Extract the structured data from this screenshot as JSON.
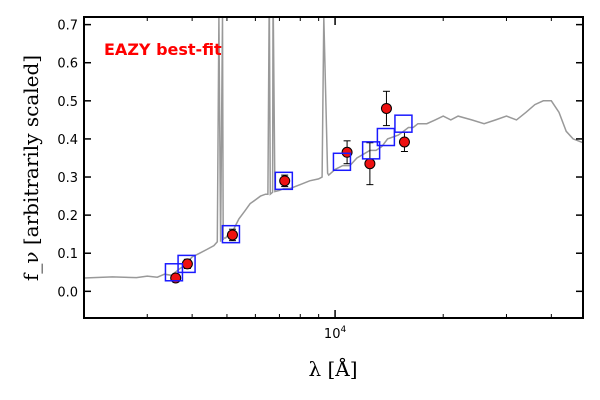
{
  "chart_data": {
    "type": "scatter",
    "title": "",
    "xlabel": "λ [Å]",
    "ylabel": "f_ν [arbitrarily scaled]",
    "xscale": "log",
    "xlim": [
      2000,
      49000
    ],
    "ylim": [
      -0.07,
      0.72
    ],
    "yticks": [
      0.0,
      0.1,
      0.2,
      0.3,
      0.4,
      0.5,
      0.6,
      0.7
    ],
    "ytick_labels": [
      "0.0",
      "0.1",
      "0.2",
      "0.3",
      "0.4",
      "0.5",
      "0.6",
      "0.7"
    ],
    "xticks": [
      10000
    ],
    "xtick_labels": [
      "10^4"
    ],
    "annotation": {
      "text": "EAZY best-fit",
      "color": "#ff0000",
      "placement": "top-left"
    },
    "colors": {
      "template": "#999999",
      "observed": "#ee1111",
      "model": "#1a1aff",
      "errorbar": "#000000"
    },
    "series": [
      {
        "kind": "line",
        "x": [
          2000,
          2400,
          2800,
          3000,
          3200,
          3350,
          3500,
          3700,
          3800,
          4000,
          4200,
          4400,
          4600,
          4700,
          4750,
          4800,
          4860,
          4880,
          4900,
          4960,
          5000,
          5200,
          5400,
          5600,
          5800,
          6000,
          6200,
          6400,
          6500,
          6550,
          6563,
          6600,
          6700,
          6716,
          6731,
          6800,
          7000,
          7200,
          7500,
          8000,
          8500,
          9000,
          9200,
          9300,
          9532,
          9600,
          10000,
          10500,
          11000,
          11500,
          12000,
          12500,
          13000,
          13500,
          14000,
          15000,
          15500,
          16000,
          16500,
          17000,
          18000,
          19000,
          20000,
          21000,
          22000,
          24000,
          26000,
          28000,
          30000,
          32000,
          34000,
          36000,
          38000,
          40000,
          42000,
          44000,
          46000,
          49000
        ],
        "y": [
          0.035,
          0.038,
          0.036,
          0.04,
          0.037,
          0.045,
          0.042,
          0.06,
          0.066,
          0.09,
          0.1,
          0.11,
          0.12,
          0.13,
          0.72,
          0.13,
          0.72,
          0.135,
          0.14,
          0.14,
          0.145,
          0.16,
          0.19,
          0.21,
          0.23,
          0.24,
          0.25,
          0.255,
          0.255,
          0.72,
          0.72,
          0.255,
          0.26,
          0.72,
          0.72,
          0.262,
          0.265,
          0.27,
          0.27,
          0.28,
          0.29,
          0.295,
          0.3,
          0.72,
          0.31,
          0.305,
          0.32,
          0.33,
          0.33,
          0.35,
          0.36,
          0.37,
          0.37,
          0.38,
          0.4,
          0.41,
          0.42,
          0.43,
          0.43,
          0.44,
          0.44,
          0.45,
          0.46,
          0.45,
          0.46,
          0.45,
          0.44,
          0.45,
          0.46,
          0.45,
          0.47,
          0.49,
          0.5,
          0.5,
          0.47,
          0.42,
          0.4,
          0.39
        ]
      },
      {
        "kind": "points",
        "x": [
          3600,
          3880,
          5180,
          7240,
          10800,
          12500,
          13900,
          15600
        ],
        "y": [
          0.035,
          0.072,
          0.148,
          0.29,
          0.365,
          0.335,
          0.48,
          0.392
        ],
        "yerr": [
          0.01,
          0.012,
          0.015,
          0.015,
          0.03,
          0.055,
          0.045,
          0.025
        ]
      },
      {
        "kind": "squares",
        "x": [
          3560,
          3860,
          5130,
          7200,
          10450,
          12600,
          13850,
          15500
        ],
        "y": [
          0.05,
          0.072,
          0.15,
          0.29,
          0.34,
          0.37,
          0.405,
          0.44
        ]
      }
    ]
  }
}
